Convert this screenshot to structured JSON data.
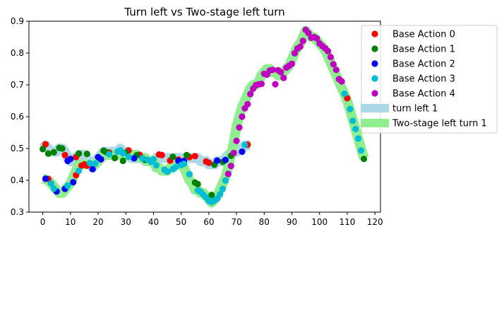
{
  "chart_data": {
    "type": "scatter",
    "title": "Turn left vs Two-stage left turn",
    "xlabel": "",
    "ylabel": "",
    "xlim": [
      -5,
      122
    ],
    "ylim": [
      0.3,
      0.9
    ],
    "xticks": [
      0,
      10,
      20,
      30,
      40,
      50,
      60,
      70,
      80,
      90,
      100,
      110,
      120
    ],
    "yticks": [
      0.3,
      0.4,
      0.5,
      0.6,
      0.7,
      0.8,
      0.9
    ],
    "grid": false,
    "legend_position": "outside-top-right",
    "band_series": [
      {
        "name": "turn left 1",
        "color": "#add8e6",
        "x": [
          0,
          1,
          2,
          3,
          4,
          5,
          6,
          7,
          8,
          9,
          10,
          11,
          12,
          13,
          14,
          15,
          16,
          17,
          18,
          19,
          20,
          21,
          22,
          23,
          24,
          25,
          26,
          27,
          28,
          29,
          30,
          31,
          32,
          33,
          34,
          35,
          36,
          37,
          38,
          39,
          40,
          41,
          42,
          43,
          44,
          45,
          46,
          47,
          48,
          49,
          50,
          51,
          52,
          53,
          54,
          55,
          56,
          57,
          58,
          59,
          60,
          61,
          62,
          63,
          64,
          65,
          66,
          67,
          68,
          69,
          70,
          71,
          72,
          73,
          74,
          75
        ],
        "y": [
          0.5,
          0.51,
          0.5,
          0.49,
          0.49,
          0.49,
          0.5,
          0.5,
          0.49,
          0.47,
          0.46,
          0.47,
          0.47,
          0.48,
          0.48,
          0.48,
          0.47,
          0.45,
          0.44,
          0.46,
          0.47,
          0.48,
          0.49,
          0.49,
          0.48,
          0.49,
          0.49,
          0.49,
          0.5,
          0.49,
          0.49,
          0.48,
          0.47,
          0.47,
          0.47,
          0.47,
          0.47,
          0.46,
          0.46,
          0.46,
          0.46,
          0.47,
          0.47,
          0.47,
          0.47,
          0.47,
          0.47,
          0.47,
          0.47,
          0.47,
          0.47,
          0.47,
          0.47,
          0.47,
          0.47,
          0.47,
          0.47,
          0.46,
          0.46,
          0.46,
          0.45,
          0.45,
          0.45,
          0.46,
          0.46,
          0.46,
          0.47,
          0.48,
          0.48,
          0.49,
          0.49,
          0.5,
          0.5,
          0.51,
          0.51,
          0.51
        ]
      },
      {
        "name": "Two-stage left turn 1",
        "color": "#90ee90",
        "x": [
          0,
          1,
          2,
          3,
          4,
          5,
          6,
          7,
          8,
          9,
          10,
          11,
          12,
          13,
          14,
          15,
          16,
          17,
          18,
          19,
          20,
          21,
          22,
          23,
          24,
          25,
          26,
          27,
          28,
          29,
          30,
          31,
          32,
          33,
          34,
          35,
          36,
          37,
          38,
          39,
          40,
          41,
          42,
          43,
          44,
          45,
          46,
          47,
          48,
          49,
          50,
          51,
          52,
          53,
          54,
          55,
          56,
          57,
          58,
          59,
          60,
          61,
          62,
          63,
          64,
          65,
          66,
          67,
          68,
          69,
          70,
          71,
          72,
          73,
          74,
          75,
          76,
          77,
          78,
          79,
          80,
          81,
          82,
          83,
          84,
          85,
          86,
          87,
          88,
          89,
          90,
          91,
          92,
          93,
          94,
          95,
          96,
          97,
          98,
          99,
          100,
          101,
          102,
          103,
          104,
          105,
          106,
          107,
          108,
          109,
          110,
          111,
          112,
          113,
          114,
          115,
          116
        ],
        "y": [
          0.405,
          0.403,
          0.4,
          0.39,
          0.38,
          0.37,
          0.36,
          0.36,
          0.37,
          0.38,
          0.39,
          0.41,
          0.43,
          0.45,
          0.45,
          0.45,
          0.45,
          0.45,
          0.45,
          0.45,
          0.46,
          0.47,
          0.48,
          0.48,
          0.48,
          0.48,
          0.48,
          0.48,
          0.48,
          0.48,
          0.48,
          0.48,
          0.48,
          0.48,
          0.48,
          0.47,
          0.47,
          0.47,
          0.46,
          0.46,
          0.46,
          0.44,
          0.44,
          0.43,
          0.43,
          0.43,
          0.44,
          0.44,
          0.45,
          0.45,
          0.45,
          0.44,
          0.42,
          0.4,
          0.39,
          0.37,
          0.37,
          0.36,
          0.36,
          0.35,
          0.34,
          0.33,
          0.34,
          0.35,
          0.37,
          0.39,
          0.41,
          0.44,
          0.48,
          0.52,
          0.57,
          0.6,
          0.63,
          0.65,
          0.67,
          0.69,
          0.7,
          0.7,
          0.71,
          0.73,
          0.74,
          0.75,
          0.75,
          0.74,
          0.74,
          0.73,
          0.73,
          0.74,
          0.75,
          0.76,
          0.78,
          0.8,
          0.82,
          0.83,
          0.85,
          0.87,
          0.86,
          0.85,
          0.85,
          0.84,
          0.83,
          0.82,
          0.81,
          0.79,
          0.77,
          0.75,
          0.73,
          0.71,
          0.69,
          0.67,
          0.65,
          0.62,
          0.59,
          0.56,
          0.53,
          0.5,
          0.47
        ]
      }
    ],
    "series": [
      {
        "name": "Base Action 0",
        "color": "#ff0000",
        "points": [
          [
            1,
            0.513
          ],
          [
            2,
            0.404
          ],
          [
            8,
            0.479
          ],
          [
            12,
            0.416
          ],
          [
            12,
            0.473
          ],
          [
            14,
            0.446
          ],
          [
            15,
            0.45
          ],
          [
            16,
            0.446
          ],
          [
            24,
            0.487
          ],
          [
            31,
            0.494
          ],
          [
            35,
            0.48
          ],
          [
            42,
            0.481
          ],
          [
            43,
            0.479
          ],
          [
            46,
            0.462
          ],
          [
            49,
            0.465
          ],
          [
            53,
            0.473
          ],
          [
            55,
            0.476
          ],
          [
            59,
            0.459
          ],
          [
            60,
            0.455
          ],
          [
            74,
            0.512
          ],
          [
            110,
            0.658
          ]
        ]
      },
      {
        "name": "Base Action 1",
        "color": "#008000",
        "points": [
          [
            0,
            0.498
          ],
          [
            2,
            0.484
          ],
          [
            4,
            0.488
          ],
          [
            6,
            0.502
          ],
          [
            7,
            0.5
          ],
          [
            13,
            0.484
          ],
          [
            16,
            0.483
          ],
          [
            22,
            0.493
          ],
          [
            23,
            0.488
          ],
          [
            26,
            0.47
          ],
          [
            29,
            0.461
          ],
          [
            30,
            0.487
          ],
          [
            34,
            0.479
          ],
          [
            37,
            0.464
          ],
          [
            47,
            0.474
          ],
          [
            52,
            0.479
          ],
          [
            55,
            0.393
          ],
          [
            56,
            0.388
          ],
          [
            61,
            0.354
          ],
          [
            62,
            0.449
          ],
          [
            65,
            0.458
          ],
          [
            68,
            0.477
          ],
          [
            116,
            0.467
          ]
        ]
      },
      {
        "name": "Base Action 2",
        "color": "#0000ff",
        "points": [
          [
            1,
            0.405
          ],
          [
            5,
            0.365
          ],
          [
            8,
            0.373
          ],
          [
            9,
            0.461
          ],
          [
            10,
            0.467
          ],
          [
            11,
            0.394
          ],
          [
            18,
            0.435
          ],
          [
            20,
            0.473
          ],
          [
            21,
            0.466
          ],
          [
            33,
            0.469
          ],
          [
            49,
            0.461
          ],
          [
            51,
            0.461
          ],
          [
            63,
            0.462
          ],
          [
            66,
            0.464
          ],
          [
            72,
            0.49
          ]
        ]
      },
      {
        "name": "Base Action 3",
        "color": "#00bcd4",
        "points": [
          [
            3,
            0.39
          ],
          [
            4,
            0.374
          ],
          [
            9,
            0.383
          ],
          [
            13,
            0.43
          ],
          [
            17,
            0.454
          ],
          [
            19,
            0.453
          ],
          [
            24,
            0.482
          ],
          [
            27,
            0.49
          ],
          [
            28,
            0.494
          ],
          [
            29,
            0.485
          ],
          [
            31,
            0.474
          ],
          [
            36,
            0.469
          ],
          [
            38,
            0.464
          ],
          [
            39,
            0.458
          ],
          [
            40,
            0.466
          ],
          [
            41,
            0.447
          ],
          [
            44,
            0.433
          ],
          [
            45,
            0.427
          ],
          [
            47,
            0.435
          ],
          [
            48,
            0.441
          ],
          [
            50,
            0.448
          ],
          [
            51,
            0.452
          ],
          [
            53,
            0.419
          ],
          [
            56,
            0.368
          ],
          [
            57,
            0.364
          ],
          [
            58,
            0.355
          ],
          [
            59,
            0.346
          ],
          [
            60,
            0.335
          ],
          [
            61,
            0.332
          ],
          [
            62,
            0.336
          ],
          [
            63,
            0.342
          ],
          [
            64,
            0.356
          ],
          [
            65,
            0.373
          ],
          [
            66,
            0.399
          ],
          [
            73,
            0.511
          ],
          [
            109,
            0.672
          ],
          [
            111,
            0.624
          ],
          [
            112,
            0.587
          ],
          [
            113,
            0.561
          ],
          [
            114,
            0.531
          ],
          [
            115,
            0.494
          ]
        ]
      },
      {
        "name": "Base Action 4",
        "color": "#c000c0",
        "points": [
          [
            67,
            0.42
          ],
          [
            68,
            0.445
          ],
          [
            69,
            0.486
          ],
          [
            70,
            0.524
          ],
          [
            71,
            0.566
          ],
          [
            72,
            0.6
          ],
          [
            73,
            0.626
          ],
          [
            74,
            0.639
          ],
          [
            75,
            0.671
          ],
          [
            76,
            0.688
          ],
          [
            77,
            0.699
          ],
          [
            78,
            0.702
          ],
          [
            79,
            0.703
          ],
          [
            80,
            0.735
          ],
          [
            81,
            0.732
          ],
          [
            82,
            0.745
          ],
          [
            83,
            0.747
          ],
          [
            84,
            0.702
          ],
          [
            85,
            0.746
          ],
          [
            86,
            0.74
          ],
          [
            87,
            0.722
          ],
          [
            88,
            0.754
          ],
          [
            89,
            0.76
          ],
          [
            90,
            0.766
          ],
          [
            91,
            0.799
          ],
          [
            92,
            0.814
          ],
          [
            93,
            0.82
          ],
          [
            94,
            0.838
          ],
          [
            95,
            0.873
          ],
          [
            96,
            0.863
          ],
          [
            97,
            0.848
          ],
          [
            98,
            0.85
          ],
          [
            99,
            0.846
          ],
          [
            100,
            0.83
          ],
          [
            101,
            0.822
          ],
          [
            102,
            0.815
          ],
          [
            103,
            0.806
          ],
          [
            104,
            0.787
          ],
          [
            105,
            0.765
          ],
          [
            106,
            0.747
          ],
          [
            107,
            0.718
          ],
          [
            108,
            0.711
          ]
        ]
      }
    ]
  }
}
